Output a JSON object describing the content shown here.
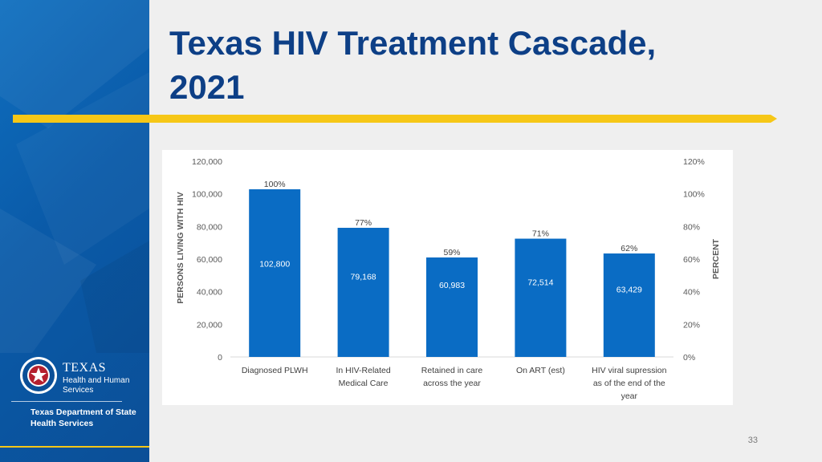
{
  "slide": {
    "title_line1": "Texas HIV Treatment Cascade,",
    "title_line2": "2021",
    "page_number": "33"
  },
  "branding": {
    "logo_texas": "TEXAS",
    "logo_hhs": "Health and Human Services",
    "dshs_line1": "Texas Department of State",
    "dshs_line2": "Health Services"
  },
  "colors": {
    "bar": "#0a6cc4",
    "title": "#0d3f86",
    "accent": "#f6c717",
    "sidebar": "#0b5eab"
  },
  "chart_data": {
    "type": "bar",
    "title": "",
    "ylabel": "PERSONS LIVING WITH HIV",
    "y2label": "PERCENT",
    "ylim": [
      0,
      120000
    ],
    "y_ticks": [
      "0",
      "20,000",
      "40,000",
      "60,000",
      "80,000",
      "100,000",
      "120,000"
    ],
    "y2_ticks": [
      "0%",
      "20%",
      "40%",
      "60%",
      "80%",
      "100%",
      "120%"
    ],
    "categories": [
      [
        "Diagnosed PLWH"
      ],
      [
        "In HIV-Related",
        "Medical Care"
      ],
      [
        "Retained in care",
        "across the year"
      ],
      [
        "On ART (est)"
      ],
      [
        "HIV viral supression",
        "as of the end of the",
        "year"
      ]
    ],
    "values": [
      102800,
      79168,
      60983,
      72514,
      63429
    ],
    "value_labels": [
      "102,800",
      "79,168",
      "60,983",
      "72,514",
      "63,429"
    ],
    "percent_labels": [
      "100%",
      "77%",
      "59%",
      "71%",
      "62%"
    ]
  }
}
